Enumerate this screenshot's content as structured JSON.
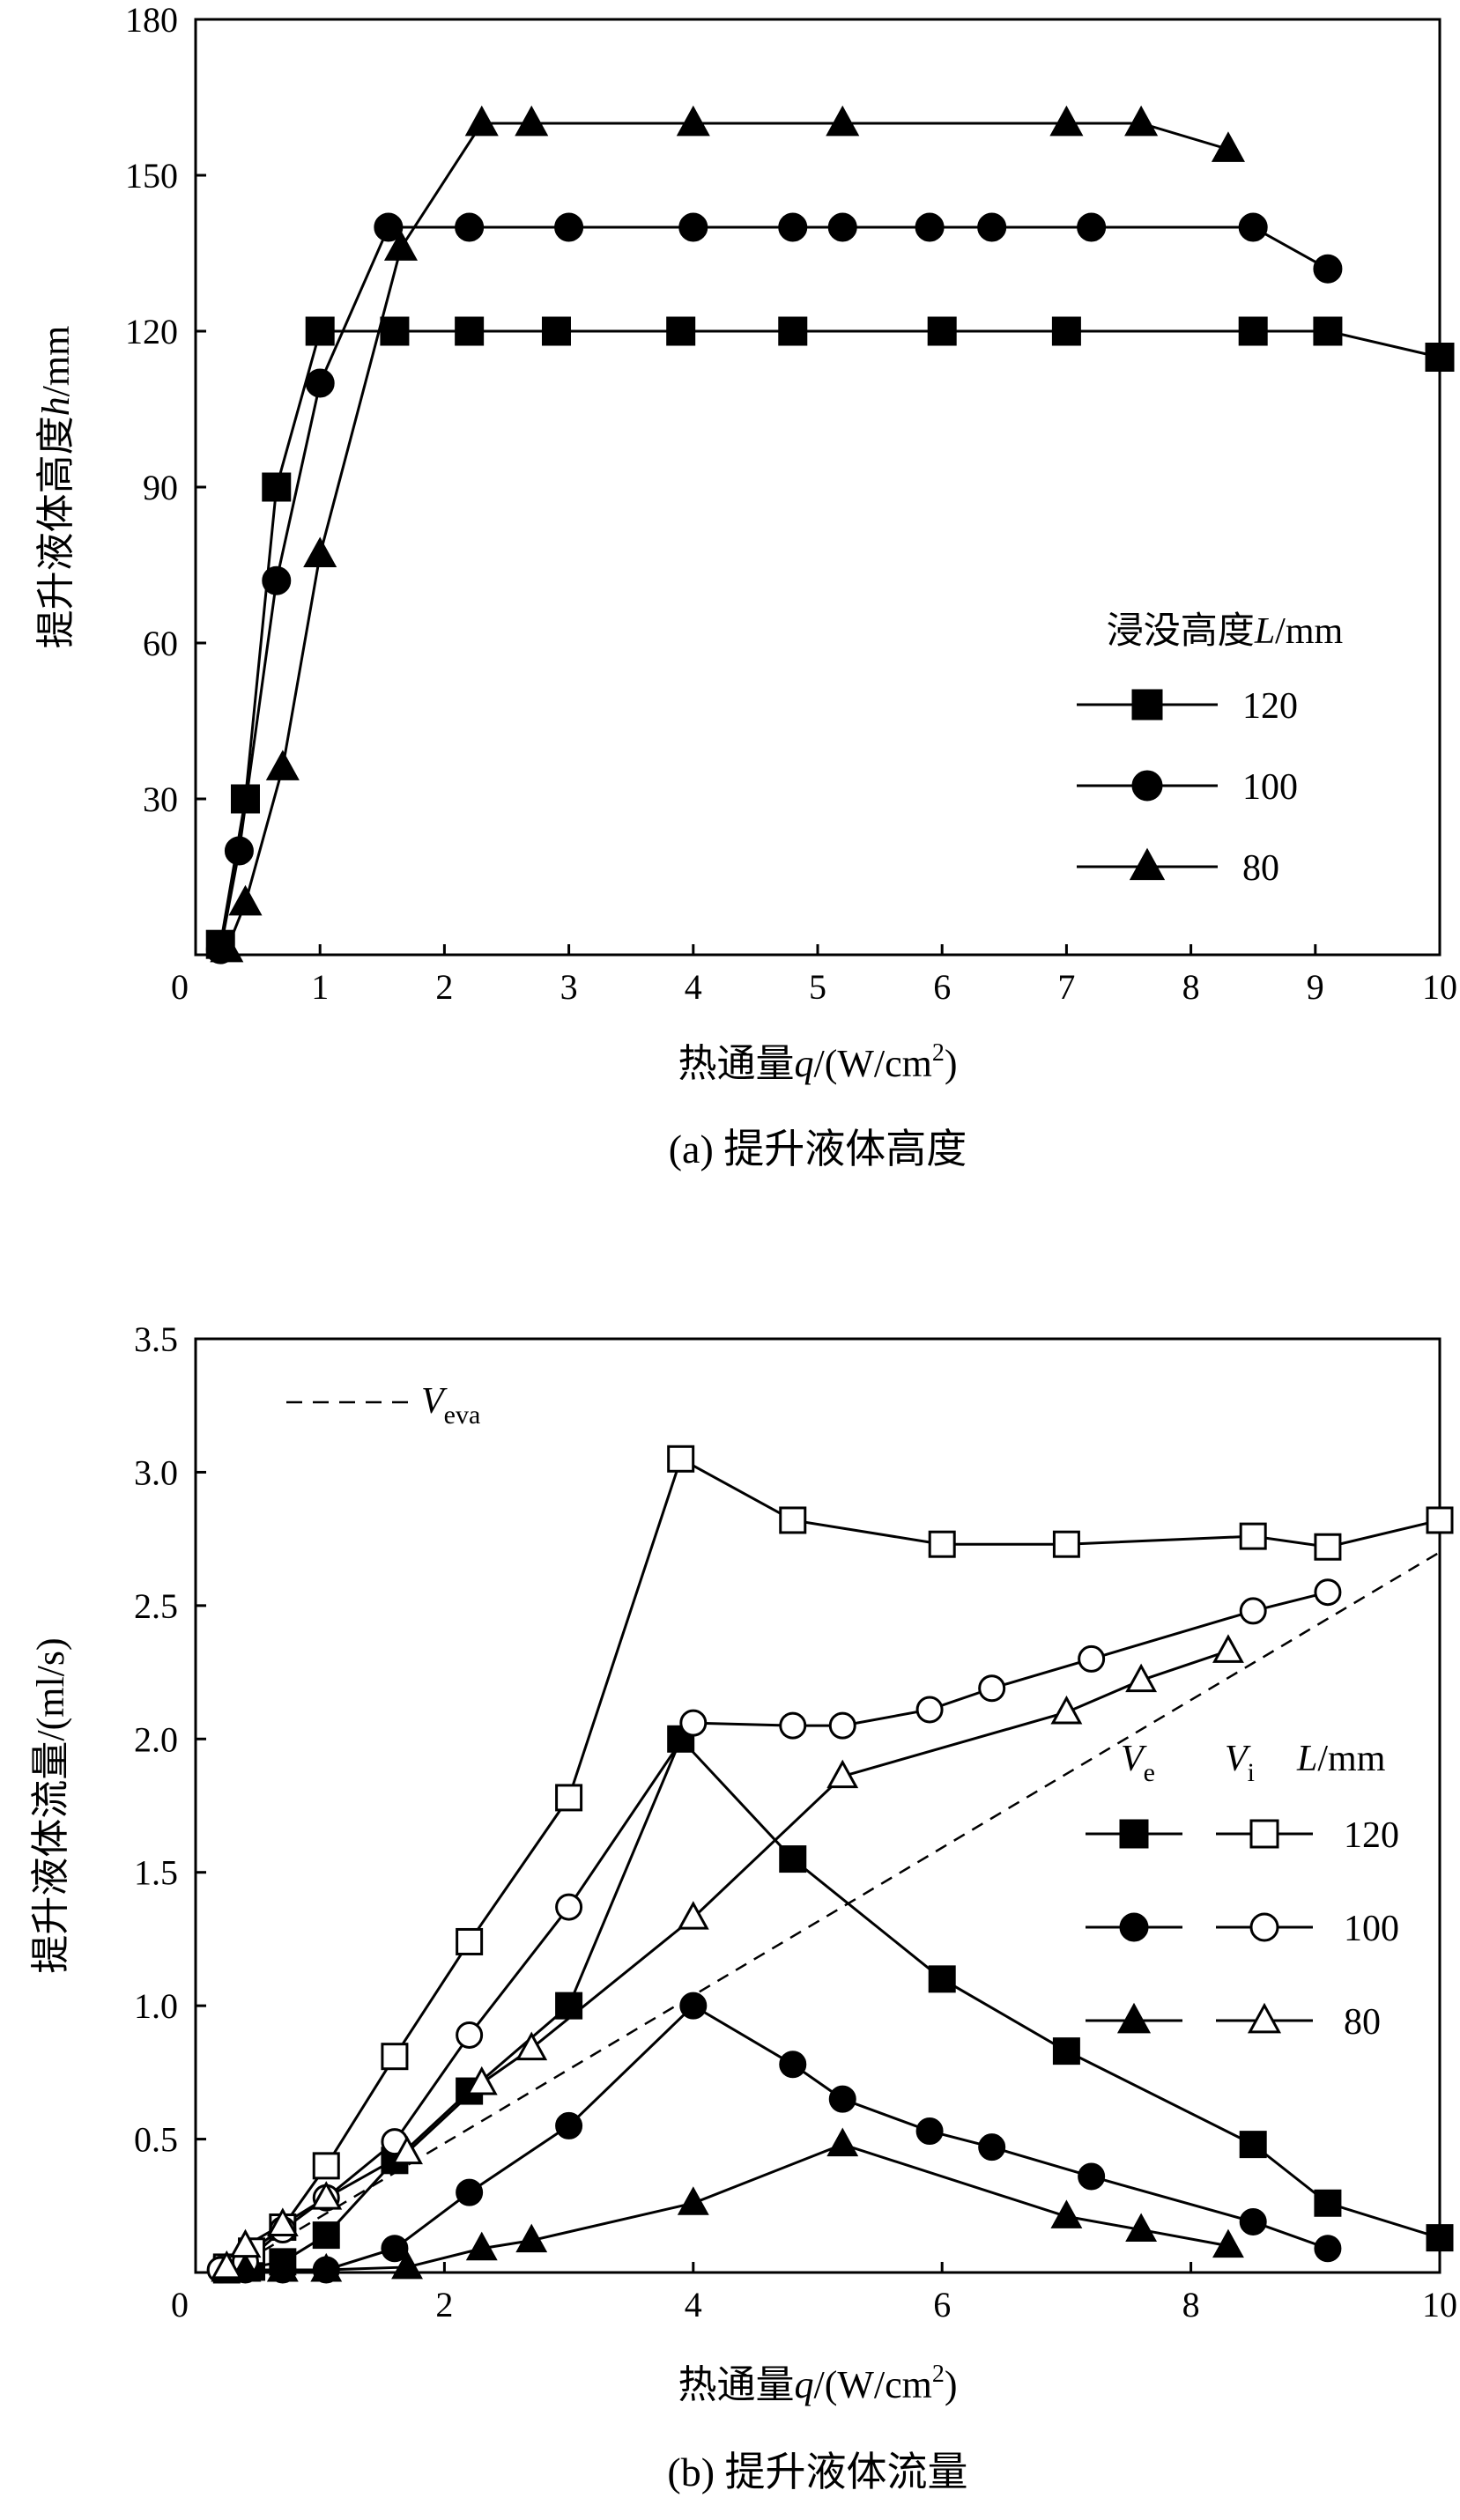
{
  "chart_data": [
    {
      "type": "line",
      "caption": "(a) 提升液体高度",
      "xlabel": "热通量q/(W/cm²)",
      "ylabel": "提升液体高度h/mm",
      "xlim": [
        0,
        10
      ],
      "ylim": [
        0,
        180
      ],
      "xticks": [
        "0",
        "1",
        "2",
        "3",
        "4",
        "5",
        "6",
        "7",
        "8",
        "9",
        "10"
      ],
      "yticks": [
        "30",
        "60",
        "90",
        "120",
        "150",
        "180"
      ],
      "legend_title": "浸没高度L/mm",
      "legend_position": "center-right",
      "series": [
        {
          "name": "120",
          "marker": "square-filled",
          "x": [
            0.2,
            0.4,
            0.65,
            1.0,
            1.6,
            2.2,
            2.9,
            3.9,
            4.8,
            6.0,
            7.0,
            8.5,
            9.1,
            10.0
          ],
          "y": [
            2,
            30,
            90,
            120,
            120,
            120,
            120,
            120,
            120,
            120,
            120,
            120,
            120,
            115
          ]
        },
        {
          "name": "100",
          "marker": "circle-filled",
          "x": [
            0.2,
            0.35,
            0.65,
            1.0,
            1.55,
            2.2,
            3.0,
            4.0,
            4.8,
            5.2,
            5.9,
            6.4,
            7.2,
            8.5,
            9.1
          ],
          "y": [
            1,
            20,
            72,
            110,
            140,
            140,
            140,
            140,
            140,
            140,
            140,
            140,
            140,
            140,
            132
          ]
        },
        {
          "name": "80",
          "marker": "triangle-filled",
          "x": [
            0.25,
            0.4,
            0.7,
            1.0,
            1.65,
            2.3,
            2.7,
            4.0,
            5.2,
            7.0,
            7.6,
            8.3
          ],
          "y": [
            1,
            10,
            36,
            77,
            136,
            160,
            160,
            160,
            160,
            160,
            160,
            155
          ]
        }
      ]
    },
    {
      "type": "line",
      "caption": "(b) 提升液体流量",
      "xlabel": "热通量q/(W/cm²)",
      "ylabel": "提升液体流量/(ml/s)",
      "xlim": [
        0,
        10
      ],
      "ylim": [
        0,
        3.5
      ],
      "xticks": [
        "0",
        "2",
        "4",
        "6",
        "8",
        "10"
      ],
      "yticks": [
        "0.5",
        "1.0",
        "1.5",
        "2.0",
        "2.5",
        "3.0",
        "3.5"
      ],
      "legend_title": {
        "ve": "V",
        "ve_sub": "e",
        "vi": "V",
        "vi_sub": "i",
        "unit": "L/mm"
      },
      "legend_position": "center-right",
      "veva_label": {
        "main": "V",
        "sub": "eva"
      },
      "veva_line": {
        "x": [
          0.25,
          10.0
        ],
        "y": [
          0.0,
          2.7
        ]
      },
      "series": [
        {
          "name": "120",
          "kind": "Ve",
          "marker": "square-filled",
          "x": [
            0.25,
            0.45,
            0.7,
            1.05,
            1.6,
            2.2,
            3.0,
            3.9,
            4.8,
            6.0,
            7.0,
            8.5,
            9.1,
            10.0
          ],
          "y": [
            0.01,
            0.02,
            0.04,
            0.14,
            0.42,
            0.68,
            1.0,
            2.0,
            1.55,
            1.1,
            0.83,
            0.48,
            0.26,
            0.13
          ]
        },
        {
          "name": "120",
          "kind": "Vi",
          "marker": "square-open",
          "x": [
            0.25,
            0.45,
            0.7,
            1.05,
            1.6,
            2.2,
            3.0,
            3.9,
            4.8,
            6.0,
            7.0,
            8.5,
            9.1,
            10.0
          ],
          "y": [
            0.02,
            0.08,
            0.17,
            0.4,
            0.81,
            1.24,
            1.78,
            3.05,
            2.82,
            2.73,
            2.73,
            2.76,
            2.72,
            2.82
          ]
        },
        {
          "name": "100",
          "kind": "Ve",
          "marker": "circle-filled",
          "x": [
            0.2,
            0.4,
            0.7,
            1.05,
            1.6,
            2.2,
            3.0,
            4.0,
            4.8,
            5.2,
            5.9,
            6.4,
            7.2,
            8.5,
            9.1
          ],
          "y": [
            0.01,
            0.01,
            0.01,
            0.01,
            0.09,
            0.3,
            0.55,
            1.0,
            0.78,
            0.65,
            0.53,
            0.47,
            0.36,
            0.19,
            0.09
          ]
        },
        {
          "name": "100",
          "kind": "Vi",
          "marker": "circle-open",
          "x": [
            0.2,
            0.4,
            0.7,
            1.05,
            1.6,
            2.2,
            3.0,
            4.0,
            4.8,
            5.2,
            5.9,
            6.4,
            7.2,
            8.5,
            9.1
          ],
          "y": [
            0.01,
            0.04,
            0.16,
            0.28,
            0.49,
            0.89,
            1.37,
            2.06,
            2.05,
            2.05,
            2.11,
            2.19,
            2.3,
            2.48,
            2.55
          ]
        },
        {
          "name": "80",
          "kind": "Ve",
          "marker": "triangle-filled",
          "x": [
            0.25,
            0.4,
            0.7,
            1.05,
            1.7,
            2.3,
            2.7,
            4.0,
            5.2,
            7.0,
            7.6,
            8.3
          ],
          "y": [
            0.01,
            0.01,
            0.01,
            0.01,
            0.02,
            0.09,
            0.12,
            0.26,
            0.48,
            0.21,
            0.16,
            0.1
          ]
        },
        {
          "name": "80",
          "kind": "Vi",
          "marker": "triangle-open",
          "x": [
            0.25,
            0.4,
            0.7,
            1.05,
            1.7,
            2.3,
            2.7,
            4.0,
            5.2,
            7.0,
            7.6,
            8.3
          ],
          "y": [
            0.02,
            0.1,
            0.18,
            0.28,
            0.45,
            0.71,
            0.84,
            1.33,
            1.86,
            2.1,
            2.22,
            2.33
          ]
        }
      ]
    }
  ]
}
